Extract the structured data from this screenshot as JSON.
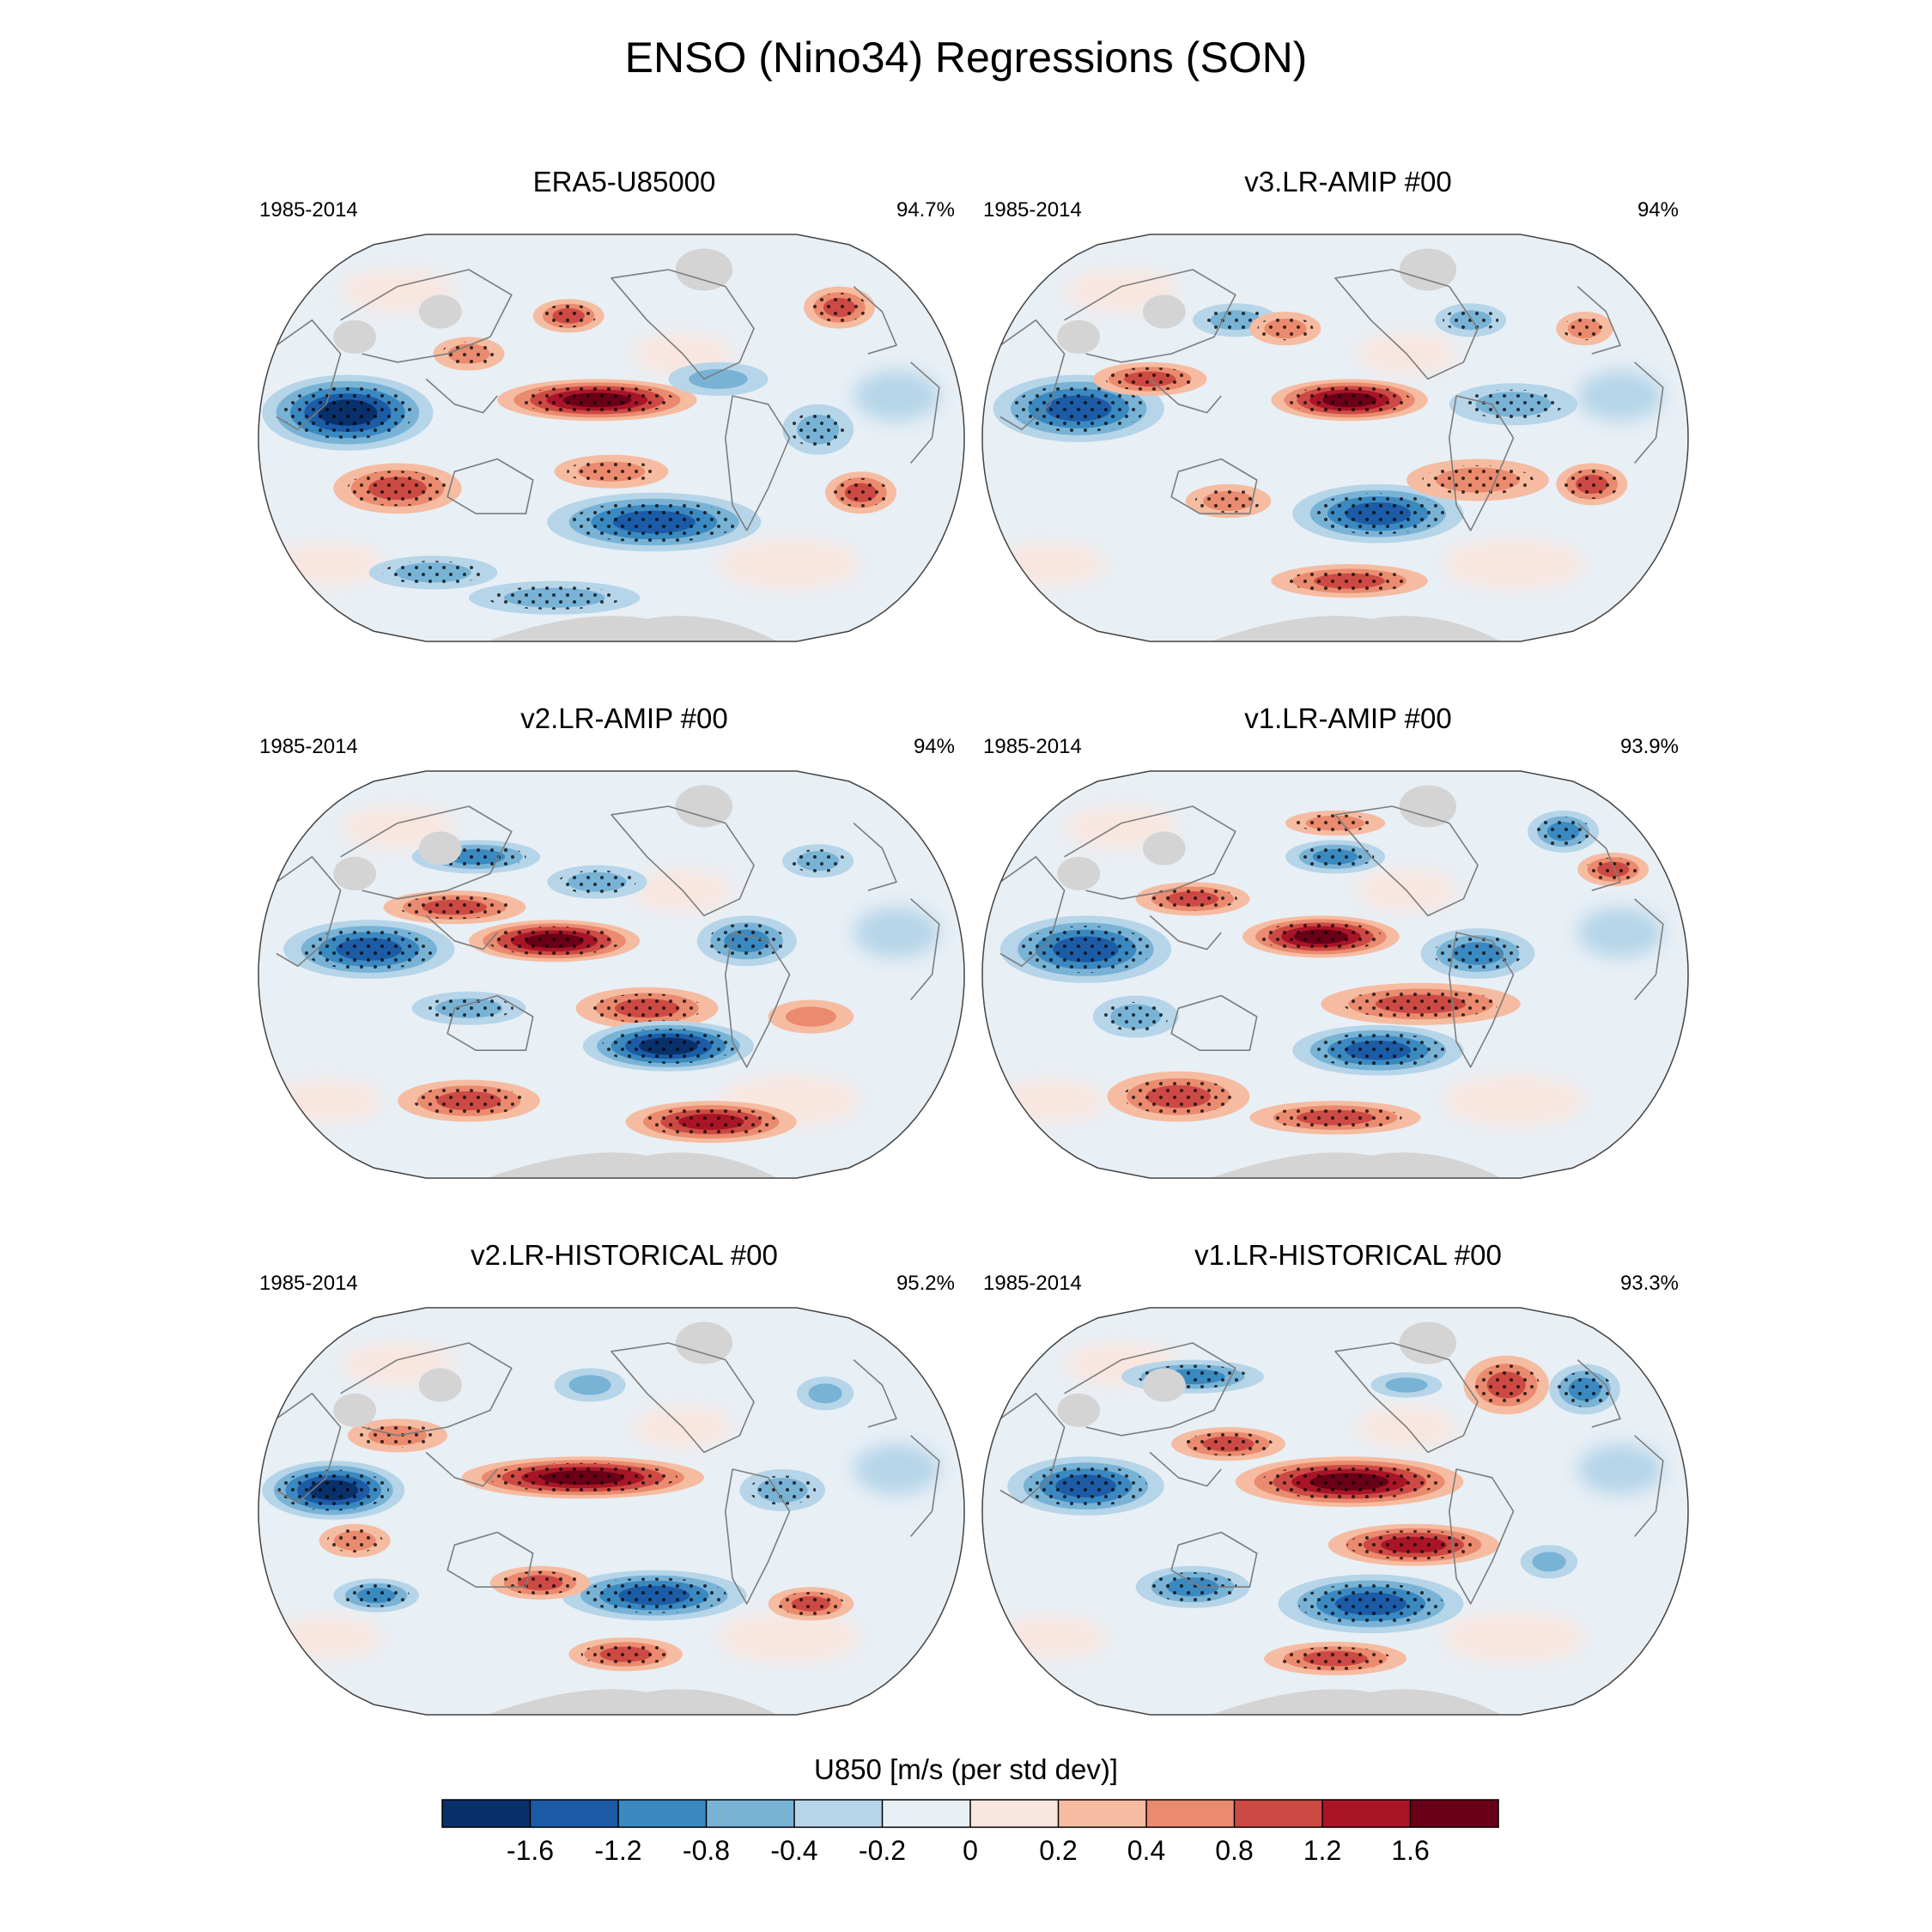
{
  "title": "ENSO (Nino34) Regressions (SON)",
  "chart_data": {
    "type": "heatmap",
    "projection": "Robinson (global, Pacific-centered)",
    "stippling": "statistically significant regions",
    "land_missing_color": "#d4d4d4",
    "panels": [
      {
        "id": "era5",
        "title": "ERA5-U85000",
        "period": "1985-2014",
        "percent": "94.7%",
        "blobs": [
          [
            0.13,
            0.44,
            0.12,
            0.09,
            -1.8
          ],
          [
            0.48,
            0.41,
            0.14,
            0.05,
            1.8
          ],
          [
            0.56,
            0.7,
            0.15,
            0.07,
            -1.3
          ],
          [
            0.79,
            0.48,
            0.05,
            0.06,
            -0.7
          ],
          [
            0.2,
            0.62,
            0.09,
            0.06,
            0.9
          ],
          [
            0.85,
            0.63,
            0.05,
            0.05,
            0.9
          ],
          [
            0.44,
            0.21,
            0.05,
            0.04,
            0.8
          ],
          [
            0.82,
            0.19,
            0.05,
            0.05,
            0.9
          ],
          [
            0.42,
            0.88,
            0.12,
            0.04,
            -0.6
          ],
          [
            0.25,
            0.82,
            0.09,
            0.04,
            -0.7
          ],
          [
            0.5,
            0.58,
            0.08,
            0.04,
            0.6
          ],
          [
            0.65,
            0.36,
            0.07,
            0.04,
            -0.5
          ],
          [
            0.3,
            0.3,
            0.05,
            0.04,
            0.7
          ]
        ]
      },
      {
        "id": "v3amip",
        "title": "v3.LR-AMIP  #00",
        "period": "1985-2014",
        "percent": "94%",
        "blobs": [
          [
            0.14,
            0.43,
            0.12,
            0.08,
            -1.5
          ],
          [
            0.52,
            0.41,
            0.11,
            0.05,
            1.8
          ],
          [
            0.56,
            0.68,
            0.12,
            0.07,
            -1.3
          ],
          [
            0.7,
            0.6,
            0.1,
            0.05,
            0.7
          ],
          [
            0.24,
            0.36,
            0.08,
            0.04,
            0.8
          ],
          [
            0.75,
            0.42,
            0.09,
            0.05,
            -0.7
          ],
          [
            0.36,
            0.22,
            0.06,
            0.04,
            -0.7
          ],
          [
            0.86,
            0.61,
            0.05,
            0.05,
            0.8
          ],
          [
            0.52,
            0.84,
            0.11,
            0.04,
            0.9
          ],
          [
            0.43,
            0.24,
            0.05,
            0.04,
            0.7
          ],
          [
            0.69,
            0.22,
            0.05,
            0.04,
            -0.6
          ],
          [
            0.85,
            0.24,
            0.04,
            0.04,
            0.7
          ],
          [
            0.35,
            0.65,
            0.06,
            0.04,
            0.6
          ]
        ]
      },
      {
        "id": "v2amip",
        "title": "v2.LR-AMIP  #00",
        "period": "1985-2014",
        "percent": "94%",
        "blobs": [
          [
            0.16,
            0.44,
            0.12,
            0.07,
            -1.2
          ],
          [
            0.42,
            0.42,
            0.12,
            0.05,
            1.8
          ],
          [
            0.55,
            0.58,
            0.1,
            0.05,
            1.0
          ],
          [
            0.58,
            0.67,
            0.12,
            0.06,
            -1.6
          ],
          [
            0.64,
            0.85,
            0.12,
            0.05,
            1.5
          ],
          [
            0.3,
            0.8,
            0.1,
            0.05,
            0.9
          ],
          [
            0.69,
            0.42,
            0.07,
            0.06,
            -0.8
          ],
          [
            0.31,
            0.22,
            0.09,
            0.04,
            -0.8
          ],
          [
            0.48,
            0.28,
            0.07,
            0.04,
            -0.7
          ],
          [
            0.79,
            0.23,
            0.05,
            0.04,
            -0.6
          ],
          [
            0.28,
            0.34,
            0.1,
            0.04,
            0.8
          ],
          [
            0.3,
            0.58,
            0.08,
            0.04,
            -0.6
          ],
          [
            0.78,
            0.6,
            0.06,
            0.04,
            0.5
          ]
        ]
      },
      {
        "id": "v1amip",
        "title": "v1.LR-AMIP  #00",
        "period": "1985-2014",
        "percent": "93.9%",
        "blobs": [
          [
            0.15,
            0.44,
            0.12,
            0.08,
            -1.5
          ],
          [
            0.48,
            0.41,
            0.11,
            0.05,
            1.8
          ],
          [
            0.62,
            0.57,
            0.14,
            0.05,
            1.1
          ],
          [
            0.56,
            0.68,
            0.12,
            0.06,
            -1.4
          ],
          [
            0.7,
            0.45,
            0.08,
            0.06,
            -0.8
          ],
          [
            0.28,
            0.79,
            0.1,
            0.06,
            1.0
          ],
          [
            0.5,
            0.84,
            0.12,
            0.04,
            0.8
          ],
          [
            0.22,
            0.6,
            0.06,
            0.05,
            -0.6
          ],
          [
            0.5,
            0.22,
            0.07,
            0.04,
            -0.9
          ],
          [
            0.82,
            0.16,
            0.05,
            0.05,
            -0.9
          ],
          [
            0.89,
            0.25,
            0.05,
            0.04,
            0.8
          ],
          [
            0.5,
            0.14,
            0.07,
            0.03,
            0.7
          ],
          [
            0.3,
            0.32,
            0.08,
            0.04,
            0.8
          ]
        ]
      },
      {
        "id": "v2hist",
        "title": "v2.LR-HISTORICAL  #00",
        "period": "1985-2014",
        "percent": "95.2%",
        "blobs": [
          [
            0.11,
            0.45,
            0.1,
            0.07,
            -1.6
          ],
          [
            0.46,
            0.42,
            0.17,
            0.05,
            1.8
          ],
          [
            0.56,
            0.7,
            0.13,
            0.06,
            -1.4
          ],
          [
            0.52,
            0.84,
            0.08,
            0.04,
            1.1
          ],
          [
            0.78,
            0.72,
            0.06,
            0.04,
            0.9
          ],
          [
            0.4,
            0.67,
            0.07,
            0.04,
            0.8
          ],
          [
            0.17,
            0.7,
            0.06,
            0.04,
            -0.8
          ],
          [
            0.74,
            0.45,
            0.06,
            0.05,
            -0.7
          ],
          [
            0.2,
            0.32,
            0.07,
            0.04,
            0.7
          ],
          [
            0.14,
            0.57,
            0.05,
            0.04,
            0.6
          ],
          [
            0.47,
            0.2,
            0.05,
            0.04,
            -0.5
          ],
          [
            0.8,
            0.22,
            0.04,
            0.04,
            -0.5
          ]
        ]
      },
      {
        "id": "v1hist",
        "title": "v1.LR-HISTORICAL  #00",
        "period": "1985-2014",
        "percent": "93.3%",
        "blobs": [
          [
            0.15,
            0.44,
            0.11,
            0.07,
            -1.4
          ],
          [
            0.52,
            0.43,
            0.16,
            0.06,
            1.6
          ],
          [
            0.61,
            0.58,
            0.12,
            0.05,
            1.3
          ],
          [
            0.55,
            0.72,
            0.13,
            0.07,
            -1.4
          ],
          [
            0.3,
            0.68,
            0.08,
            0.05,
            -0.8
          ],
          [
            0.5,
            0.85,
            0.1,
            0.04,
            0.9
          ],
          [
            0.74,
            0.2,
            0.06,
            0.07,
            1.0
          ],
          [
            0.85,
            0.21,
            0.05,
            0.06,
            -1.0
          ],
          [
            0.3,
            0.18,
            0.1,
            0.04,
            -0.8
          ],
          [
            0.35,
            0.34,
            0.08,
            0.04,
            0.8
          ],
          [
            0.6,
            0.2,
            0.05,
            0.03,
            -0.5
          ],
          [
            0.8,
            0.62,
            0.04,
            0.04,
            -0.5
          ]
        ]
      }
    ],
    "colorbar": {
      "title": "U850 [m/s (per std dev)]",
      "tick_labels": [
        "-1.6",
        "-1.2",
        "-0.8",
        "-0.4",
        "-0.2",
        "0",
        "0.2",
        "0.4",
        "0.8",
        "1.2",
        "1.6"
      ],
      "colors": [
        "#08306b",
        "#1c5ba6",
        "#3a89c1",
        "#78b3d6",
        "#b6d5e9",
        "#e8eff5",
        "#f9e6df",
        "#f6bca1",
        "#ea8a6e",
        "#cd4a44",
        "#a91527",
        "#6a0017"
      ]
    }
  }
}
